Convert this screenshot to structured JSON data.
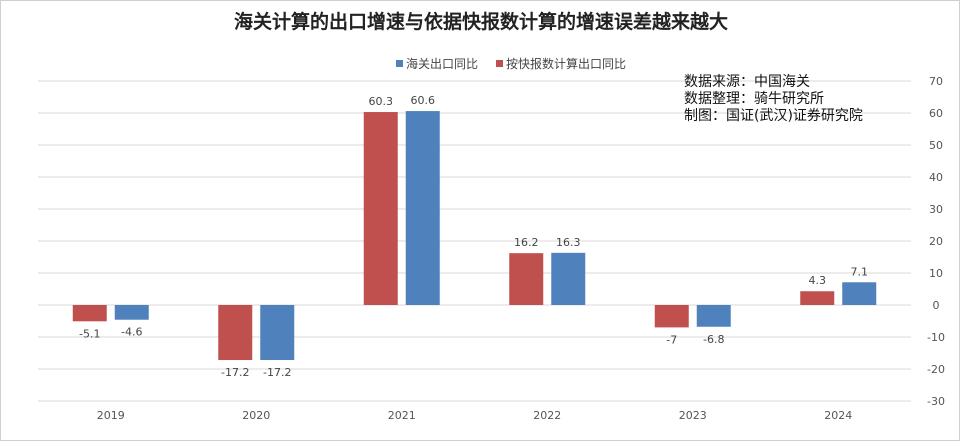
{
  "chart_data": {
    "type": "bar",
    "title": "海关计算的出口增速与依据快报数计算的增速误差越来越大",
    "categories": [
      "2019",
      "2020",
      "2021",
      "2022",
      "2023",
      "2024"
    ],
    "series": [
      {
        "name": "按快报数计算出口同比",
        "color": "#c0504d",
        "values": [
          -5.1,
          -17.2,
          60.3,
          16.2,
          -7,
          4.3
        ]
      },
      {
        "name": "海关出口同比",
        "color": "#4f81bd",
        "values": [
          -4.6,
          -17.2,
          60.6,
          16.3,
          -6.8,
          7.1
        ]
      }
    ],
    "legend_order": [
      1,
      0
    ],
    "ylim": [
      -30,
      70
    ],
    "yticks": [
      -30,
      -20,
      -10,
      0,
      10,
      20,
      30,
      40,
      50,
      60,
      70
    ],
    "y_axis_side": "right",
    "grid": true,
    "legend_position": "top",
    "annotations": [
      "数据来源：中国海关",
      "数据整理：骑牛研究所",
      "制图：国证(武汉)证券研究院"
    ]
  }
}
